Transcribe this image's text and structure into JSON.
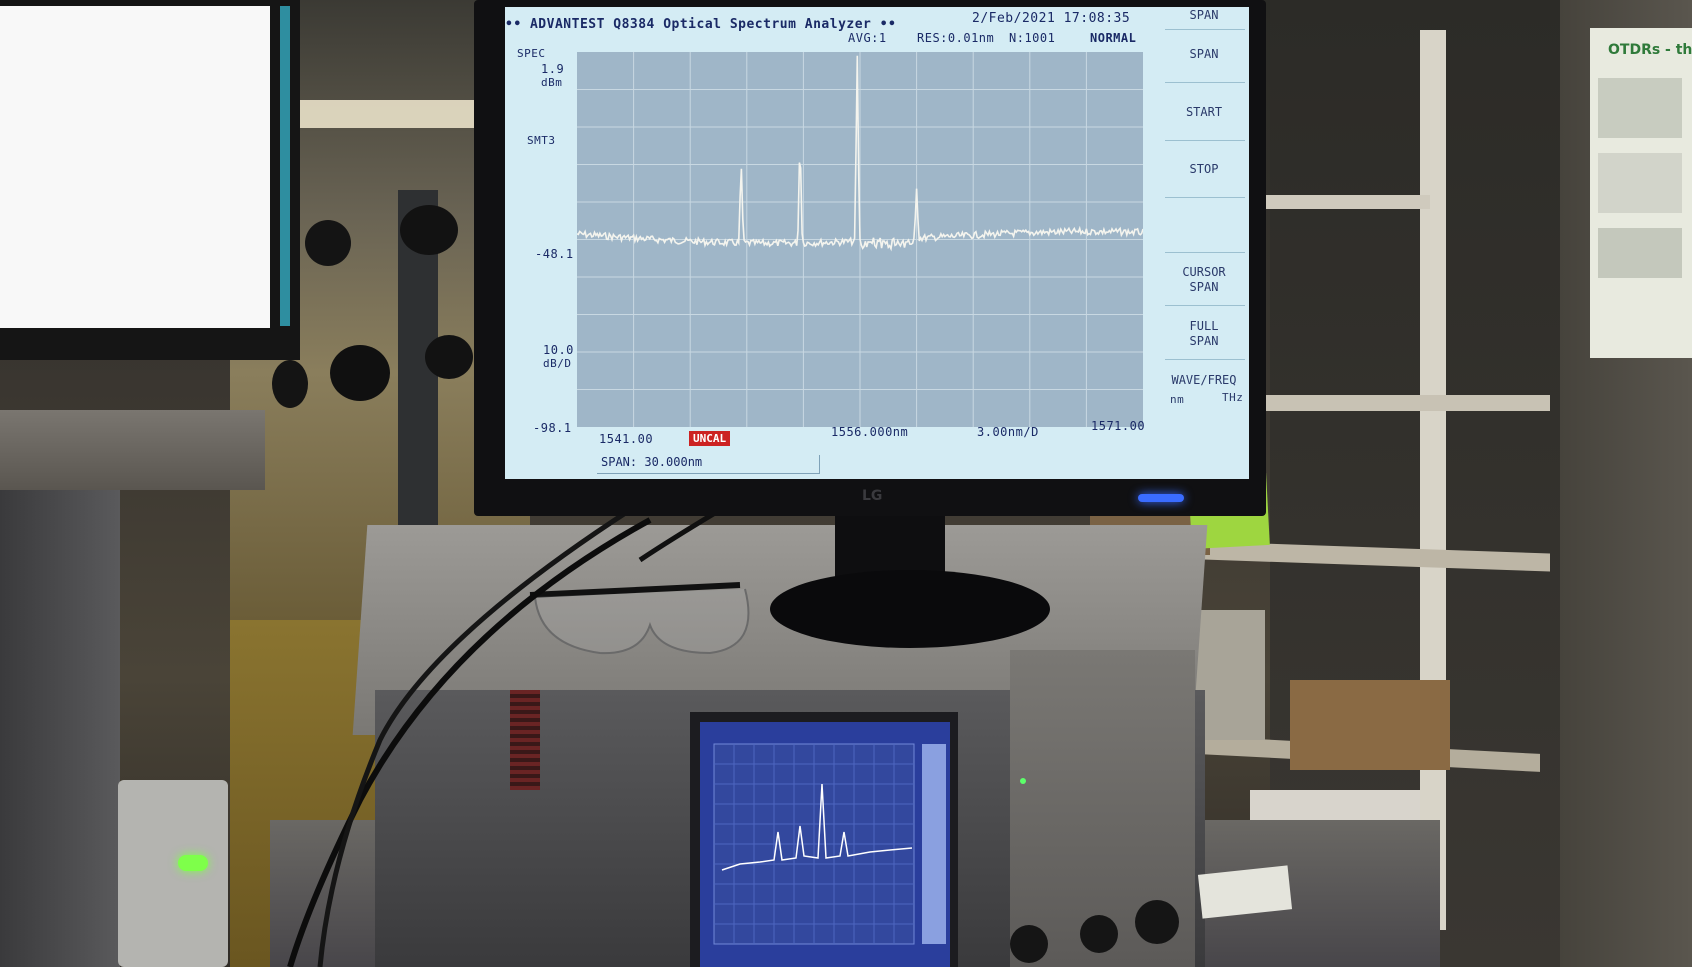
{
  "osa": {
    "header_title": "•• ADVANTEST Q8384 Optical Spectrum Analyzer ••",
    "datetime": "2/Feb/2021 17:08:35",
    "avg": "AVG:1",
    "res": "RES:0.01nm",
    "npoints": "N:1001",
    "mode": "NORMAL",
    "spec": "SPEC",
    "ref_level": "1.9",
    "ref_unit": "dBm",
    "sens": "SMT3",
    "mid_level": "-48.1",
    "scale": "10.0",
    "scale_unit": "dB/D",
    "bottom_level": "-98.1",
    "start_wl": "1541.00",
    "uncal": "UNCAL",
    "center_wl": "1556.000nm",
    "span_div": "3.00nm/D",
    "stop_wl": "1571.00",
    "span_entry": "SPAN: 30.000nm",
    "softkeys": {
      "top": "SPAN",
      "span": "SPAN",
      "start": "START",
      "stop": "STOP",
      "cursor_span_1": "CURSOR",
      "cursor_span_2": "SPAN",
      "full_span_1": "FULL",
      "full_span_2": "SPAN",
      "wave_freq": "WAVE/FREQ",
      "nm": "nm",
      "thz": "THz"
    },
    "colors": {
      "screen_bg": "#d4ecf4",
      "plot_bg": "#9fb6c8",
      "trace": "#f4f4ee",
      "text": "#1a2a66",
      "uncal_bg": "#cc2222"
    }
  },
  "monitor_brand": "LG",
  "poster_title": "OTDRs - th",
  "icons": {
    "status_led": "led-indicator-icon",
    "monitor_led": "power-led-icon"
  }
}
